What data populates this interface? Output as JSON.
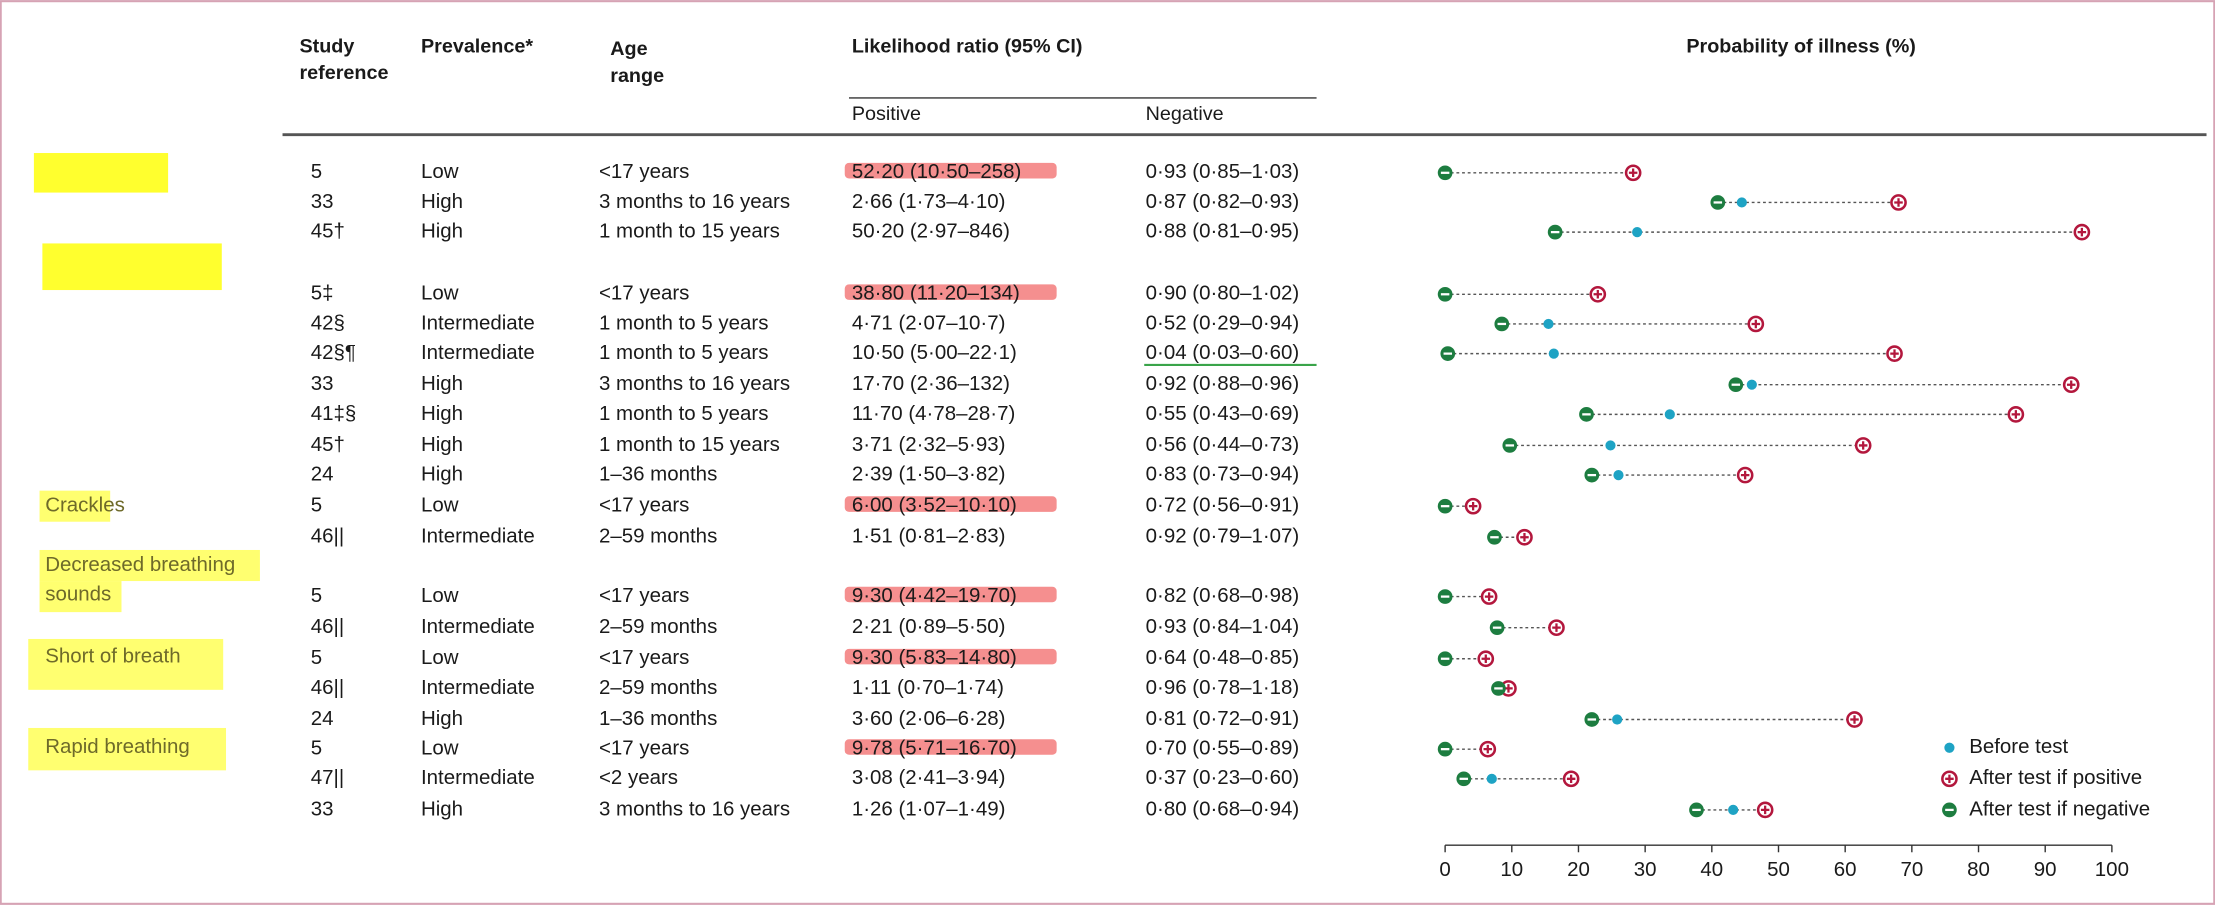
{
  "header": {
    "study_reference": [
      "Study",
      "reference"
    ],
    "prevalence": "Prevalence*",
    "age_range": [
      "Age",
      "range"
    ],
    "likelihood_ratio": "Likelihood ratio (95% CI)",
    "positive": "Positive",
    "negative": "Negative",
    "probability": "Probability of illness (%)"
  },
  "labels": {
    "crackles": "Crackles",
    "decreased": [
      "Decreased breathing",
      "sounds"
    ],
    "short": "Short of breath",
    "rapid": "Rapid breathing"
  },
  "rows": [
    [
      "5",
      "Low",
      "<17 years",
      "52·20 (10·50–258)",
      "0·93 (0·85–1·03)"
    ],
    [
      "33",
      "High",
      "3 months to 16 years",
      "2·66 (1·73–4·10)",
      "0·87 (0·82–0·93)"
    ],
    [
      "45†",
      "High",
      "1 month to 15 years",
      "50·20 (2·97–846)",
      "0·88 (0·81–0·95)"
    ],
    [
      "5‡",
      "Low",
      "<17 years",
      "38·80 (11·20–134)",
      "0·90 (0·80–1·02)"
    ],
    [
      "42§",
      "Intermediate",
      "1 month to 5 years",
      "4·71 (2·07–10·7)",
      "0·52 (0·29–0·94)"
    ],
    [
      "42§¶",
      "Intermediate",
      "1 month to 5 years",
      "10·50 (5·00–22·1)",
      "0·04 (0·03–0·60)"
    ],
    [
      "33",
      "High",
      "3 months to 16 years",
      "17·70 (2·36–132)",
      "0·92 (0·88–0·96)"
    ],
    [
      "41‡§",
      "High",
      "1 month to 5 years",
      "11·70 (4·78–28·7)",
      "0·55 (0·43–0·69)"
    ],
    [
      "45†",
      "High",
      "1 month to 15 years",
      "3·71 (2·32–5·93)",
      "0·56 (0·44–0·73)"
    ],
    [
      "24",
      "High",
      "1–36 months",
      "2·39 (1·50–3·82)",
      "0·83 (0·73–0·94)"
    ],
    [
      "5",
      "Low",
      "<17 years",
      "6·00 (3·52–10·10)",
      "0·72 (0·56–0·91)"
    ],
    [
      "46||",
      "Intermediate",
      "2–59 months",
      "1·51 (0·81–2·83)",
      "0·92 (0·79–1·07)"
    ],
    [
      "5",
      "Low",
      "<17 years",
      "9·30 (4·42–19·70)",
      "0·82 (0·68–0·98)"
    ],
    [
      "46||",
      "Intermediate",
      "2–59 months",
      "2·21 (0·89–5·50)",
      "0·93 (0·84–1·04)"
    ],
    [
      "5",
      "Low",
      "<17 years",
      "9·30 (5·83–14·80)",
      "0·64 (0·48–0·85)"
    ],
    [
      "46||",
      "Intermediate",
      "2–59 months",
      "1·11 (0·70–1·74)",
      "0·96 (0·78–1·18)"
    ],
    [
      "24",
      "High",
      "1–36 months",
      "3·60 (2·06–6·28)",
      "0·81 (0·72–0·91)"
    ],
    [
      "5",
      "Low",
      "<17 years",
      "9·78 (5·71–16·70)",
      "0·70 (0·55–0·89)"
    ],
    [
      "47||",
      "Intermediate",
      "<2 years",
      "3·08 (2·41–3·94)",
      "0·37 (0·23–0·60)"
    ],
    [
      "33",
      "High",
      "3 months to 16 years",
      "1·26 (1·07–1·49)",
      "0·80 (0·68–0·94)"
    ]
  ],
  "probability_chart": {
    "type": "dot",
    "xlim": [
      0,
      100
    ],
    "xticks": [
      0,
      10,
      20,
      30,
      40,
      50,
      60,
      70,
      80,
      90,
      100
    ],
    "before": [
      null,
      44.5,
      28.8,
      null,
      15.5,
      16.3,
      46,
      33.7,
      24.8,
      26,
      null,
      null,
      null,
      null,
      null,
      null,
      25.8,
      null,
      7,
      43.2
    ],
    "positive": [
      28.2,
      68,
      95.5,
      22.9,
      46.6,
      67.4,
      93.9,
      85.6,
      62.7,
      45,
      4.2,
      11.9,
      6.6,
      16.7,
      6.1,
      9.5,
      61.4,
      6.4,
      18.9,
      48
    ],
    "negative": [
      0,
      40.9,
      16.5,
      0,
      8.5,
      0.4,
      43.6,
      21.2,
      9.7,
      22,
      0,
      7.4,
      0,
      7.8,
      0,
      8,
      22,
      0,
      2.8,
      37.7
    ],
    "colors": {
      "before": "#1ea3c4",
      "positive": "#b3173d",
      "negative": "#1d7d40"
    },
    "legend": [
      "Before test",
      "After test if positive",
      "After test if negative"
    ]
  }
}
